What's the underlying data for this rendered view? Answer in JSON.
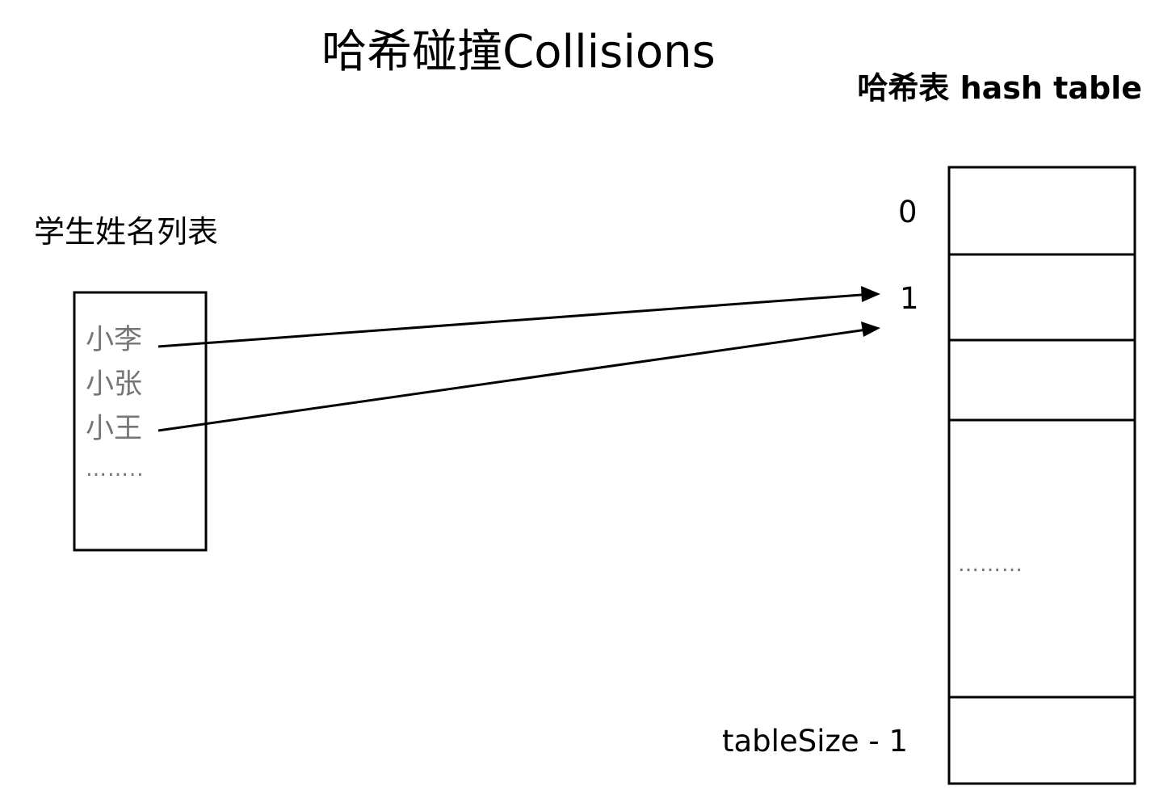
{
  "title": "哈希碰撞Collisions",
  "student_list": {
    "label": "学生姓名列表",
    "names": [
      "小李",
      "小张",
      "小王"
    ],
    "ellipsis": "……..",
    "colors": {
      "text": "#757575"
    }
  },
  "hash_table": {
    "label": "哈希表 hash table",
    "index_first": "0",
    "index_second": "1",
    "index_last": "tableSize - 1",
    "middle_ellipsis": "………"
  },
  "mappings": [
    {
      "from": "小李",
      "to": "1"
    },
    {
      "from": "小王",
      "to": "1"
    }
  ]
}
